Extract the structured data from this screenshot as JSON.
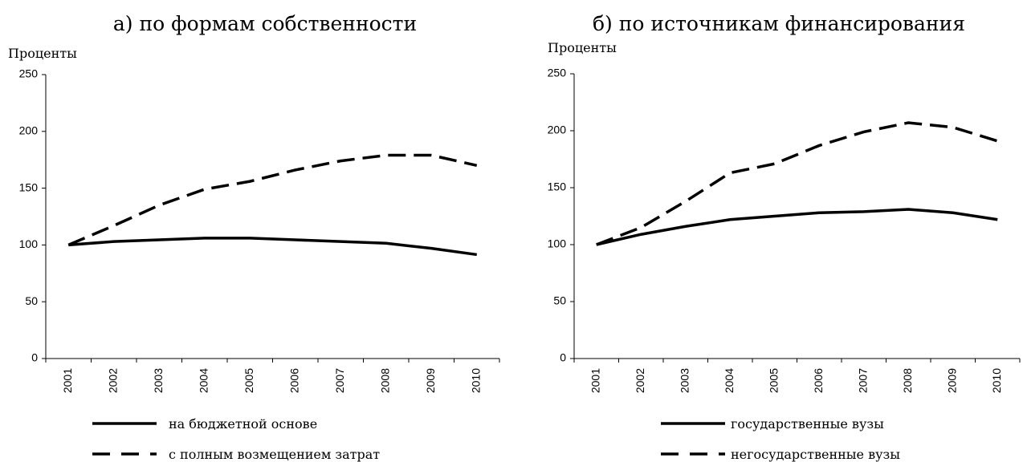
{
  "chart_data": [
    {
      "type": "line",
      "title": "а) по формам собственности",
      "y_label": "Проценты",
      "categories": [
        "2001",
        "2002",
        "2003",
        "2004",
        "2005",
        "2006",
        "2007",
        "2008",
        "2009",
        "2010"
      ],
      "ylim": [
        0,
        250
      ],
      "yticks": [
        0,
        50,
        100,
        150,
        200,
        250
      ],
      "series": [
        {
          "name": "на бюджетной основе",
          "color": "#000000",
          "line_style": "solid",
          "values": [
            100,
            103,
            104.5,
            106,
            106,
            104.5,
            103,
            101.5,
            97,
            91.5
          ]
        },
        {
          "name": "с полным возмещением затрат",
          "color": "#000000",
          "line_style": "dashed",
          "values": [
            100,
            117,
            135,
            149,
            156,
            166,
            174,
            179,
            179,
            170
          ]
        }
      ]
    },
    {
      "type": "line",
      "title": "б) по источникам финансирования",
      "y_label": "Проценты",
      "categories": [
        "2001",
        "2002",
        "2003",
        "2004",
        "2005",
        "2006",
        "2007",
        "2008",
        "2009",
        "2010"
      ],
      "ylim": [
        0,
        250
      ],
      "yticks": [
        0,
        50,
        100,
        150,
        200,
        250
      ],
      "series": [
        {
          "name": "государственные вузы",
          "color": "#000000",
          "line_style": "solid",
          "values": [
            100,
            109,
            116,
            122,
            125,
            128,
            129,
            131,
            128,
            122
          ]
        },
        {
          "name": "негосударственные вузы",
          "color": "#000000",
          "line_style": "dashed",
          "values": [
            100,
            115,
            138,
            163,
            171,
            187,
            199,
            207,
            203,
            191
          ]
        }
      ]
    }
  ]
}
